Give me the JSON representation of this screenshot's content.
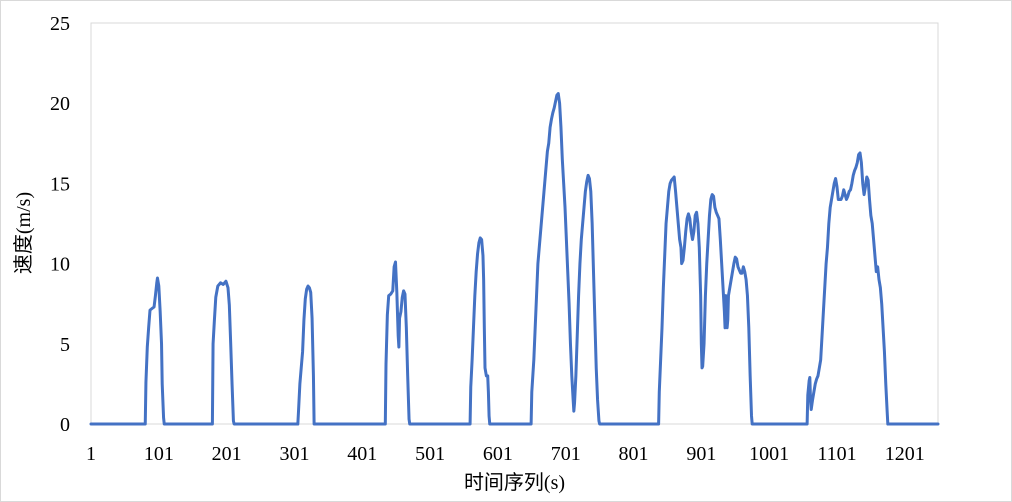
{
  "chart_data": {
    "type": "line",
    "title": "",
    "xlabel": "时间序列(s)",
    "ylabel": "速度(m/s)",
    "xlim": [
      1,
      1250
    ],
    "ylim": [
      0,
      25
    ],
    "grid": false,
    "legend": "none",
    "line_color": "#4472c4",
    "x_ticks": [
      1,
      101,
      201,
      301,
      401,
      501,
      601,
      701,
      801,
      901,
      1001,
      1101,
      1201
    ],
    "y_ticks": [
      0,
      5,
      10,
      15,
      20,
      25
    ],
    "series": [
      {
        "name": "",
        "points": [
          [
            1,
            0
          ],
          [
            81,
            0
          ],
          [
            82,
            2.6
          ],
          [
            84,
            4.8
          ],
          [
            86,
            6.0
          ],
          [
            88,
            7.1
          ],
          [
            91,
            7.2
          ],
          [
            94,
            7.3
          ],
          [
            96,
            8.0
          ],
          [
            98,
            8.8
          ],
          [
            99,
            9.1
          ],
          [
            101,
            8.6
          ],
          [
            103,
            7.0
          ],
          [
            105,
            5.0
          ],
          [
            106,
            2.5
          ],
          [
            108,
            0.4
          ],
          [
            109,
            0
          ],
          [
            180,
            0
          ],
          [
            181,
            5.0
          ],
          [
            183,
            6.5
          ],
          [
            185,
            7.9
          ],
          [
            188,
            8.6
          ],
          [
            192,
            8.8
          ],
          [
            196,
            8.7
          ],
          [
            200,
            8.9
          ],
          [
            203,
            8.5
          ],
          [
            205,
            7.4
          ],
          [
            207,
            5.0
          ],
          [
            209,
            2.5
          ],
          [
            211,
            0.2
          ],
          [
            212,
            0
          ],
          [
            306,
            0
          ],
          [
            307,
            0.8
          ],
          [
            309,
            2.5
          ],
          [
            311,
            3.5
          ],
          [
            313,
            4.5
          ],
          [
            315,
            6.5
          ],
          [
            317,
            7.8
          ],
          [
            319,
            8.4
          ],
          [
            321,
            8.6
          ],
          [
            323,
            8.5
          ],
          [
            325,
            8.2
          ],
          [
            327,
            6.6
          ],
          [
            329,
            3.0
          ],
          [
            330,
            0
          ],
          [
            435,
            0
          ],
          [
            436,
            3.7
          ],
          [
            438,
            6.8
          ],
          [
            440,
            8.0
          ],
          [
            443,
            8.1
          ],
          [
            446,
            8.3
          ],
          [
            448,
            9.8
          ],
          [
            450,
            10.1
          ],
          [
            452,
            8.2
          ],
          [
            454,
            5.5
          ],
          [
            455,
            4.8
          ],
          [
            456,
            6.6
          ],
          [
            458,
            7.0
          ],
          [
            460,
            7.9
          ],
          [
            462,
            8.3
          ],
          [
            464,
            8.1
          ],
          [
            466,
            6.0
          ],
          [
            468,
            3.0
          ],
          [
            470,
            0.3
          ],
          [
            471,
            0
          ],
          [
            560,
            0
          ],
          [
            561,
            2.3
          ],
          [
            563,
            4.0
          ],
          [
            565,
            6.0
          ],
          [
            567,
            8.0
          ],
          [
            569,
            9.5
          ],
          [
            571,
            10.6
          ],
          [
            573,
            11.3
          ],
          [
            575,
            11.6
          ],
          [
            577,
            11.5
          ],
          [
            579,
            10.5
          ],
          [
            580,
            9.0
          ],
          [
            581,
            6.0
          ],
          [
            582,
            3.5
          ],
          [
            584,
            3.0
          ],
          [
            586,
            3.0
          ],
          [
            587,
            2.0
          ],
          [
            588,
            0.5
          ],
          [
            589,
            0
          ],
          [
            650,
            0
          ],
          [
            651,
            2.0
          ],
          [
            654,
            4.0
          ],
          [
            656,
            6.0
          ],
          [
            658,
            8.0
          ],
          [
            660,
            10.0
          ],
          [
            662,
            11.0
          ],
          [
            664,
            12.0
          ],
          [
            666,
            13.0
          ],
          [
            668,
            14.0
          ],
          [
            670,
            15.0
          ],
          [
            672,
            16.0
          ],
          [
            674,
            17.0
          ],
          [
            676,
            17.5
          ],
          [
            678,
            18.5
          ],
          [
            680,
            19.0
          ],
          [
            682,
            19.4
          ],
          [
            684,
            19.7
          ],
          [
            686,
            20.1
          ],
          [
            688,
            20.5
          ],
          [
            690,
            20.6
          ],
          [
            692,
            20.0
          ],
          [
            694,
            18.5
          ],
          [
            696,
            16.5
          ],
          [
            698,
            15.0
          ],
          [
            700,
            13.5
          ],
          [
            702,
            11.5
          ],
          [
            704,
            9.5
          ],
          [
            706,
            7.5
          ],
          [
            708,
            5.0
          ],
          [
            710,
            3.0
          ],
          [
            712,
            1.5
          ],
          [
            713,
            0.8
          ],
          [
            714,
            1.3
          ],
          [
            716,
            3.0
          ],
          [
            718,
            5.5
          ],
          [
            720,
            8.0
          ],
          [
            722,
            10.0
          ],
          [
            724,
            11.5
          ],
          [
            726,
            12.5
          ],
          [
            728,
            13.5
          ],
          [
            730,
            14.5
          ],
          [
            732,
            15.1
          ],
          [
            734,
            15.5
          ],
          [
            736,
            15.3
          ],
          [
            738,
            14.5
          ],
          [
            740,
            12.5
          ],
          [
            742,
            9.5
          ],
          [
            744,
            6.5
          ],
          [
            746,
            3.5
          ],
          [
            748,
            1.5
          ],
          [
            750,
            0.2
          ],
          [
            751,
            0
          ],
          [
            838,
            0
          ],
          [
            839,
            2.0
          ],
          [
            841,
            4.0
          ],
          [
            843,
            6.0
          ],
          [
            845,
            8.5
          ],
          [
            847,
            10.5
          ],
          [
            849,
            12.5
          ],
          [
            851,
            13.5
          ],
          [
            853,
            14.5
          ],
          [
            855,
            15.0
          ],
          [
            857,
            15.2
          ],
          [
            859,
            15.3
          ],
          [
            861,
            15.4
          ],
          [
            863,
            14.5
          ],
          [
            865,
            13.5
          ],
          [
            867,
            12.5
          ],
          [
            869,
            11.5
          ],
          [
            871,
            11.0
          ],
          [
            872,
            10.0
          ],
          [
            874,
            10.2
          ],
          [
            876,
            11.0
          ],
          [
            878,
            12.0
          ],
          [
            880,
            12.8
          ],
          [
            882,
            13.1
          ],
          [
            884,
            12.8
          ],
          [
            886,
            12.0
          ],
          [
            888,
            11.5
          ],
          [
            890,
            12.0
          ],
          [
            892,
            13.0
          ],
          [
            894,
            13.2
          ],
          [
            896,
            12.5
          ],
          [
            898,
            11.0
          ],
          [
            900,
            8.0
          ],
          [
            901,
            5.0
          ],
          [
            902,
            3.5
          ],
          [
            903,
            3.6
          ],
          [
            905,
            5.0
          ],
          [
            907,
            8.0
          ],
          [
            909,
            10.0
          ],
          [
            911,
            11.5
          ],
          [
            913,
            13.0
          ],
          [
            915,
            14.0
          ],
          [
            917,
            14.3
          ],
          [
            919,
            14.2
          ],
          [
            921,
            13.5
          ],
          [
            923,
            13.2
          ],
          [
            925,
            13.0
          ],
          [
            927,
            12.8
          ],
          [
            929,
            11.5
          ],
          [
            931,
            10.0
          ],
          [
            933,
            8.5
          ],
          [
            935,
            7.0
          ],
          [
            936,
            6.0
          ],
          [
            937,
            8.0
          ],
          [
            938,
            7.5
          ],
          [
            939,
            6.0
          ],
          [
            940,
            6.5
          ],
          [
            941,
            8.0
          ],
          [
            943,
            8.5
          ],
          [
            945,
            9.0
          ],
          [
            947,
            9.5
          ],
          [
            949,
            10.0
          ],
          [
            951,
            10.4
          ],
          [
            953,
            10.3
          ],
          [
            955,
            9.8
          ],
          [
            957,
            9.6
          ],
          [
            959,
            9.4
          ],
          [
            961,
            9.4
          ],
          [
            963,
            9.8
          ],
          [
            965,
            9.5
          ],
          [
            967,
            9.0
          ],
          [
            969,
            8.0
          ],
          [
            971,
            6.0
          ],
          [
            973,
            3.0
          ],
          [
            975,
            0.5
          ],
          [
            976,
            0
          ],
          [
            1057,
            0
          ],
          [
            1058,
            1.8
          ],
          [
            1060,
            2.7
          ],
          [
            1061,
            2.9
          ],
          [
            1062,
            1.5
          ],
          [
            1063,
            0.9
          ],
          [
            1065,
            1.5
          ],
          [
            1067,
            2.0
          ],
          [
            1069,
            2.5
          ],
          [
            1071,
            2.8
          ],
          [
            1073,
            3.0
          ],
          [
            1075,
            3.5
          ],
          [
            1077,
            4.0
          ],
          [
            1079,
            5.5
          ],
          [
            1081,
            7.0
          ],
          [
            1083,
            8.5
          ],
          [
            1085,
            10.0
          ],
          [
            1087,
            11.0
          ],
          [
            1089,
            12.5
          ],
          [
            1091,
            13.5
          ],
          [
            1093,
            14.0
          ],
          [
            1095,
            14.5
          ],
          [
            1097,
            15.0
          ],
          [
            1099,
            15.3
          ],
          [
            1101,
            14.8
          ],
          [
            1103,
            14.0
          ],
          [
            1105,
            14.0
          ],
          [
            1107,
            14.0
          ],
          [
            1109,
            14.2
          ],
          [
            1111,
            14.6
          ],
          [
            1113,
            14.3
          ],
          [
            1115,
            14.0
          ],
          [
            1117,
            14.2
          ],
          [
            1119,
            14.5
          ],
          [
            1121,
            14.6
          ],
          [
            1123,
            15.0
          ],
          [
            1125,
            15.5
          ],
          [
            1127,
            15.8
          ],
          [
            1129,
            16.0
          ],
          [
            1131,
            16.3
          ],
          [
            1133,
            16.8
          ],
          [
            1135,
            16.9
          ],
          [
            1137,
            16.3
          ],
          [
            1139,
            15.0
          ],
          [
            1141,
            14.3
          ],
          [
            1143,
            14.8
          ],
          [
            1145,
            15.4
          ],
          [
            1147,
            15.2
          ],
          [
            1149,
            14.0
          ],
          [
            1151,
            13.0
          ],
          [
            1153,
            12.5
          ],
          [
            1155,
            11.5
          ],
          [
            1157,
            10.5
          ],
          [
            1159,
            9.5
          ],
          [
            1161,
            9.8
          ],
          [
            1163,
            9.0
          ],
          [
            1165,
            8.5
          ],
          [
            1167,
            7.5
          ],
          [
            1169,
            6.0
          ],
          [
            1171,
            4.5
          ],
          [
            1173,
            2.5
          ],
          [
            1175,
            0.8
          ],
          [
            1176,
            0
          ],
          [
            1250,
            0
          ]
        ]
      }
    ]
  }
}
